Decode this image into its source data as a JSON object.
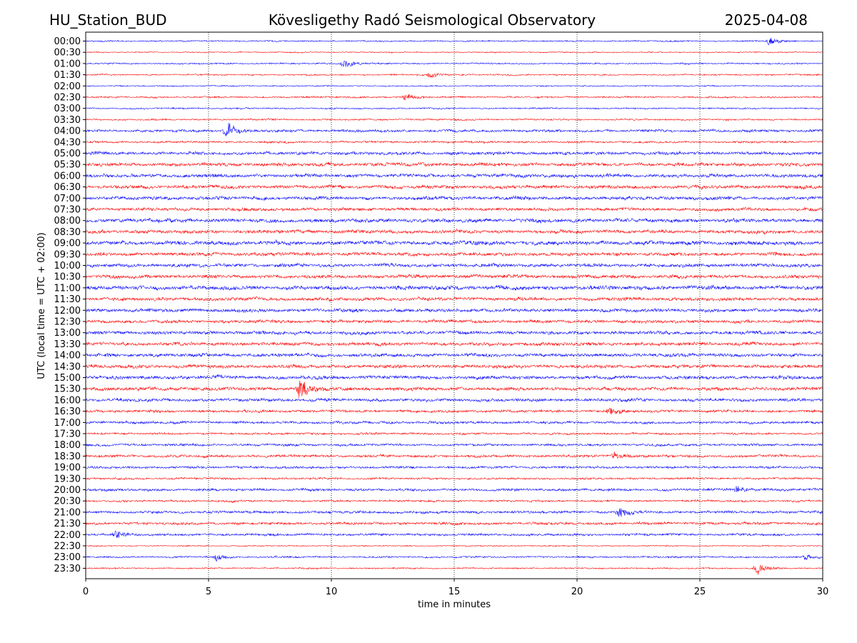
{
  "header": {
    "station": "HU_Station_BUD",
    "observatory": "Kövesligethy Radó Seismological Observatory",
    "date": "2025-04-08"
  },
  "chart_data": {
    "type": "line",
    "subtype": "helicorder",
    "xlabel": "time in minutes",
    "ylabel": "UTC (local time = UTC + 02:00)",
    "xlim": [
      0,
      30
    ],
    "x_ticks": [
      0,
      5,
      10,
      15,
      20,
      25,
      30
    ],
    "grid": "vertical dotted lines at 5-minute intervals",
    "row_labels": [
      "00:00",
      "00:30",
      "01:00",
      "01:30",
      "02:00",
      "02:30",
      "03:00",
      "03:30",
      "04:00",
      "04:30",
      "05:00",
      "05:30",
      "06:00",
      "06:30",
      "07:00",
      "07:30",
      "08:00",
      "08:30",
      "09:00",
      "09:30",
      "10:00",
      "10:30",
      "11:00",
      "11:30",
      "12:00",
      "12:30",
      "13:00",
      "13:30",
      "14:00",
      "14:30",
      "15:00",
      "15:30",
      "16:00",
      "16:30",
      "17:00",
      "17:30",
      "18:00",
      "18:30",
      "19:00",
      "19:30",
      "20:00",
      "20:30",
      "21:00",
      "21:30",
      "22:00",
      "22:30",
      "23:00",
      "23:30"
    ],
    "colors": [
      "#0000ff",
      "#ff0000"
    ],
    "row_noise_level": [
      0.25,
      0.2,
      0.25,
      0.25,
      0.22,
      0.3,
      0.25,
      0.3,
      0.45,
      0.35,
      0.55,
      0.6,
      0.6,
      0.6,
      0.6,
      0.55,
      0.65,
      0.6,
      0.7,
      0.6,
      0.6,
      0.6,
      0.7,
      0.6,
      0.6,
      0.55,
      0.6,
      0.6,
      0.6,
      0.6,
      0.6,
      0.6,
      0.55,
      0.45,
      0.45,
      0.35,
      0.4,
      0.45,
      0.4,
      0.35,
      0.45,
      0.35,
      0.45,
      0.45,
      0.4,
      0.2,
      0.3,
      0.25
    ],
    "events": [
      {
        "row": "00:00",
        "minute": 27.8,
        "amplitude": 1.2
      },
      {
        "row": "01:00",
        "minute": 10.5,
        "amplitude": 1.8
      },
      {
        "row": "01:30",
        "minute": 14.0,
        "amplitude": 0.9
      },
      {
        "row": "02:30",
        "minute": 13.0,
        "amplitude": 1.0
      },
      {
        "row": "04:00",
        "minute": 5.7,
        "amplitude": 2.4
      },
      {
        "row": "15:30",
        "minute": 8.7,
        "amplitude": 3.2
      },
      {
        "row": "16:30",
        "minute": 21.3,
        "amplitude": 1.1
      },
      {
        "row": "18:30",
        "minute": 21.5,
        "amplitude": 1.0
      },
      {
        "row": "20:00",
        "minute": 26.5,
        "amplitude": 1.0
      },
      {
        "row": "21:00",
        "minute": 21.7,
        "amplitude": 1.3
      },
      {
        "row": "22:00",
        "minute": 1.2,
        "amplitude": 1.2
      },
      {
        "row": "23:00",
        "minute": 5.3,
        "amplitude": 0.9
      },
      {
        "row": "23:00",
        "minute": 29.3,
        "amplitude": 1.0
      },
      {
        "row": "23:30",
        "minute": 27.3,
        "amplitude": 2.2
      }
    ]
  }
}
